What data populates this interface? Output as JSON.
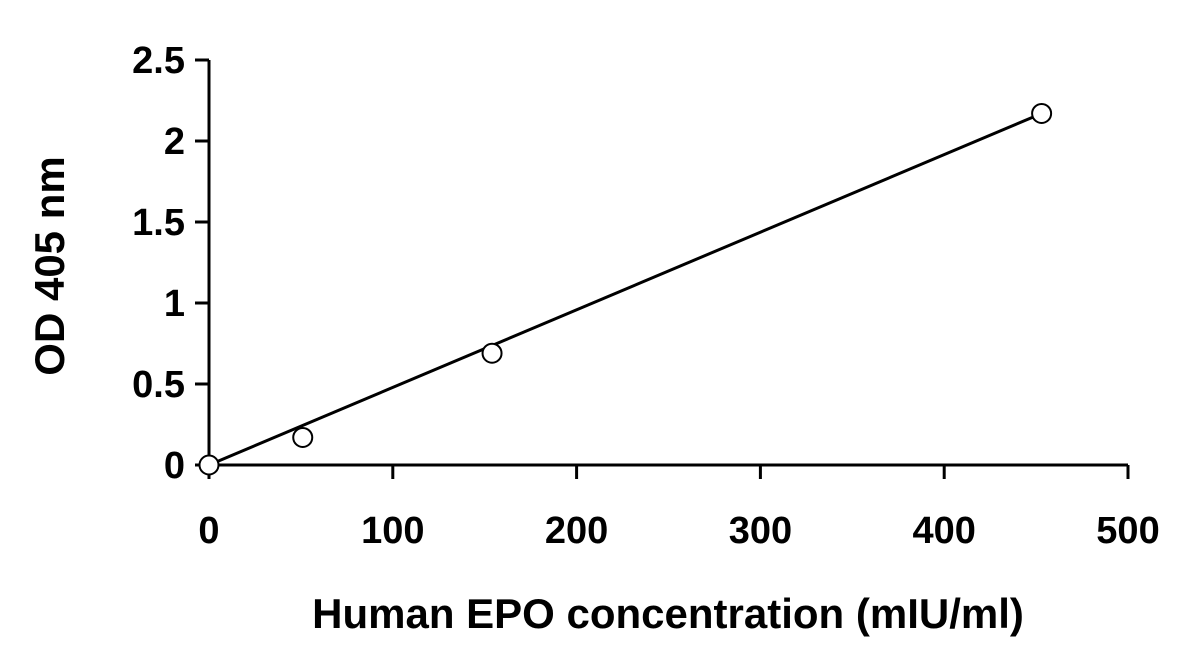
{
  "chart_data": {
    "type": "scatter",
    "title": "",
    "xlabel": "Human EPO concentration (mIU/ml)",
    "ylabel": "OD 405 nm",
    "xlim": [
      0,
      500
    ],
    "ylim": [
      0,
      2.5
    ],
    "x_ticks": [
      0,
      100,
      200,
      300,
      400,
      500
    ],
    "y_ticks": [
      0,
      0.5,
      1,
      1.5,
      2,
      2.5
    ],
    "x_tick_labels": [
      "0",
      "100",
      "200",
      "300",
      "400",
      "500"
    ],
    "y_tick_labels": [
      "0",
      "0.5",
      "1",
      "1.5",
      "2",
      "2.5"
    ],
    "grid": false,
    "legend": "none",
    "marker": "open-circle",
    "line_color": "#000000",
    "marker_color": "#000000",
    "series": [
      {
        "points": [
          {
            "x": 0,
            "y": 0
          },
          {
            "x": 51,
            "y": 0.17
          },
          {
            "x": 154,
            "y": 0.69
          },
          {
            "x": 453,
            "y": 2.17
          }
        ]
      }
    ],
    "fit_line": {
      "type": "linear",
      "x_range": [
        0,
        453
      ],
      "y_range": [
        0,
        2.17
      ]
    }
  }
}
